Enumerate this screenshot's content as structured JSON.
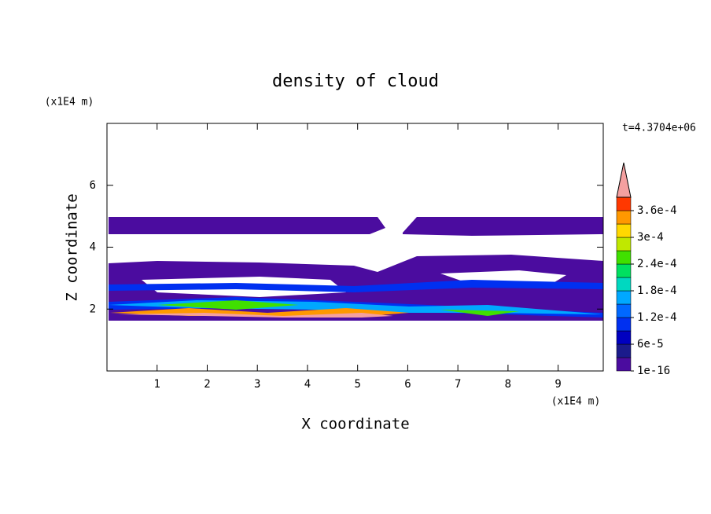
{
  "chart_data": {
    "type": "contour",
    "title": "density of cloud",
    "x_label": "X coordinate",
    "y_label": "Z coordinate",
    "x_unit": "(x1E4 m)",
    "y_unit": "(x1E4 m)",
    "time_label": "t=4.3704e+06",
    "xlim": [
      0,
      9.9
    ],
    "xticks": [
      1,
      2,
      3,
      4,
      5,
      6,
      7,
      8,
      9
    ],
    "ylim": [
      0,
      8
    ],
    "yticks": [
      2,
      4,
      6
    ],
    "colorbar": {
      "clim": [
        1e-16,
        0.00039
      ],
      "ticks": [
        {
          "value": 1e-16,
          "label": "1e-16"
        },
        {
          "value": 6e-05,
          "label": "6e-5"
        },
        {
          "value": 0.00012,
          "label": "1.2e-4"
        },
        {
          "value": 0.00018,
          "label": "1.8e-4"
        },
        {
          "value": 0.00024,
          "label": "2.4e-4"
        },
        {
          "value": 0.0003,
          "label": "3e-4"
        },
        {
          "value": 0.00036,
          "label": "3.6e-4"
        }
      ],
      "colors": [
        "#4b0c9f",
        "#1b1b8c",
        "#0000c0",
        "#0030f0",
        "#0068ff",
        "#00a8ff",
        "#00d8c0",
        "#00e060",
        "#40e000",
        "#c0e800",
        "#ffd800",
        "#ff9800",
        "#ff3800"
      ],
      "extend_color": "#f4a0a0"
    }
  }
}
